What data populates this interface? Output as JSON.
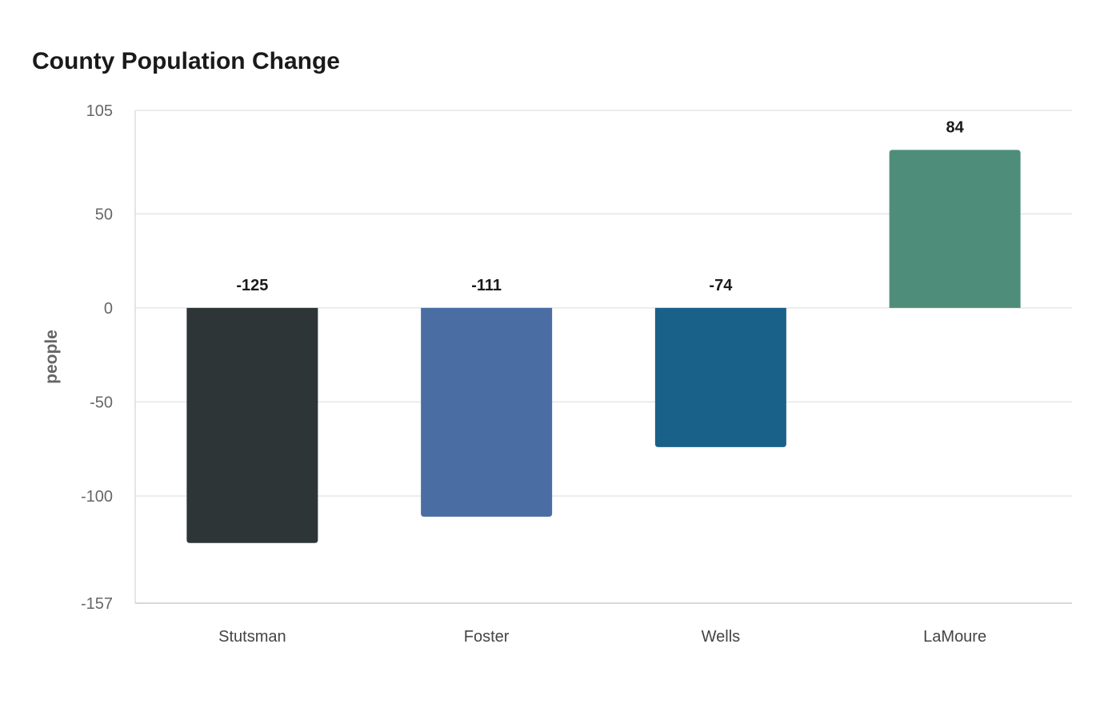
{
  "chart_data": {
    "type": "bar",
    "title": "County Population Change",
    "xlabel": "",
    "ylabel": "people",
    "categories": [
      "Stutsman",
      "Foster",
      "Wells",
      "LaMoure"
    ],
    "values": [
      -125,
      -111,
      -74,
      84
    ],
    "colors": [
      "#2e3537",
      "#4a6ea3",
      "#1a6189",
      "#4f8d7b"
    ],
    "ylim": [
      -157,
      105
    ],
    "yticks": [
      105,
      50,
      0,
      -50,
      -100,
      -157
    ],
    "grid": true,
    "legend": "none"
  }
}
